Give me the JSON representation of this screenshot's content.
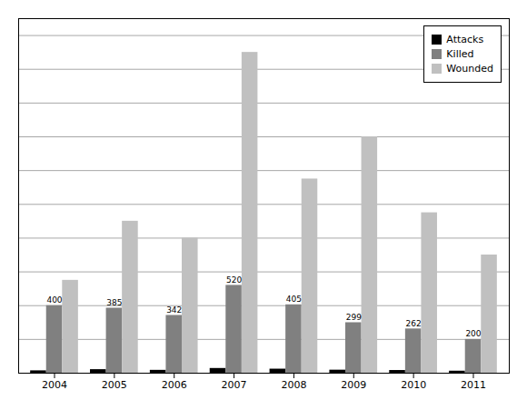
{
  "chart_data": {
    "type": "bar",
    "categories": [
      "2004",
      "2005",
      "2006",
      "2007",
      "2008",
      "2009",
      "2010",
      "2011"
    ],
    "series": [
      {
        "name": "Attacks",
        "color": "#000000",
        "values": [
          14,
          21,
          17,
          28,
          24,
          18,
          16,
          12
        ]
      },
      {
        "name": "Killed",
        "color": "#808080",
        "values": [
          400,
          385,
          342,
          520,
          405,
          299,
          262,
          200
        ],
        "data_labels": true
      },
      {
        "name": "Wounded",
        "color": "#c0c0c0",
        "values": [
          550,
          900,
          800,
          1900,
          1150,
          1400,
          950,
          700
        ]
      }
    ],
    "ylim": [
      0,
      2100
    ],
    "yticks": [
      0,
      200,
      400,
      600,
      800,
      1000,
      1200,
      1400,
      1600,
      1800,
      2000
    ],
    "grid": true,
    "legend": "upper right",
    "tick_labels": "x"
  }
}
